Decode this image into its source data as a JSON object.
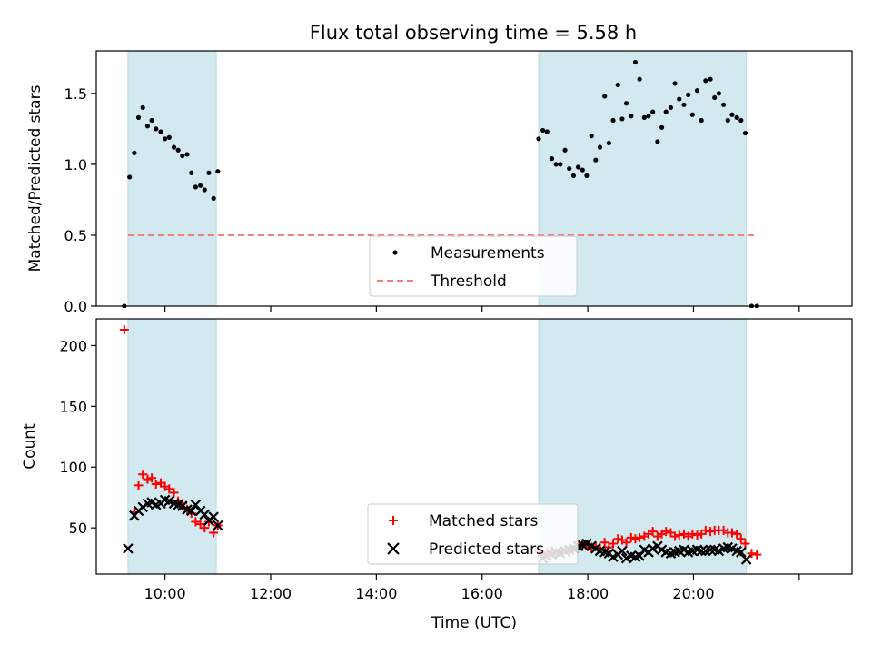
{
  "chart_data": [
    {
      "type": "scatter",
      "title": "Flux total observing time = 5.58 h",
      "xlabel": "",
      "ylabel": "Matched/Predicted stars",
      "ylim": [
        0,
        1.8
      ],
      "yticks": [
        "0.0",
        "0.5",
        "1.0",
        "1.5"
      ],
      "ytick_values": [
        0,
        0.5,
        1.0,
        1.5
      ],
      "xlim": [
        8.7,
        23.0
      ],
      "xticks": [
        10,
        12,
        14,
        16,
        18,
        20,
        22
      ],
      "grid": false,
      "legend_position": "lower-center",
      "shaded_intervals": [
        [
          9.3,
          10.97
        ],
        [
          17.07,
          21.0
        ]
      ],
      "shade_color": "#d2e9f0",
      "series": [
        {
          "name": "Measurements",
          "kind": "scatter",
          "color": "#000000",
          "x": [
            9.23,
            9.33,
            9.42,
            9.5,
            9.58,
            9.67,
            9.75,
            9.83,
            9.92,
            10.0,
            10.08,
            10.17,
            10.25,
            10.33,
            10.42,
            10.5,
            10.58,
            10.67,
            10.75,
            10.83,
            10.92,
            11.0,
            17.07,
            17.15,
            17.23,
            17.32,
            17.4,
            17.48,
            17.57,
            17.65,
            17.73,
            17.82,
            17.9,
            17.98,
            18.07,
            18.15,
            18.23,
            18.32,
            18.4,
            18.48,
            18.57,
            18.65,
            18.73,
            18.82,
            18.9,
            18.98,
            19.07,
            19.15,
            19.23,
            19.32,
            19.4,
            19.48,
            19.57,
            19.65,
            19.73,
            19.82,
            19.9,
            19.98,
            20.07,
            20.15,
            20.23,
            20.32,
            20.4,
            20.48,
            20.57,
            20.65,
            20.73,
            20.82,
            20.9,
            20.98,
            21.1,
            21.2
          ],
          "y": [
            0.0,
            0.91,
            1.08,
            1.33,
            1.4,
            1.27,
            1.31,
            1.25,
            1.23,
            1.18,
            1.19,
            1.12,
            1.1,
            1.06,
            1.07,
            0.94,
            0.84,
            0.85,
            0.82,
            0.94,
            0.76,
            0.95,
            1.18,
            1.24,
            1.23,
            1.04,
            1.0,
            1.0,
            1.1,
            0.97,
            0.92,
            0.98,
            0.96,
            0.92,
            1.2,
            1.03,
            1.12,
            1.48,
            1.15,
            1.31,
            1.56,
            1.32,
            1.43,
            1.34,
            1.72,
            1.6,
            1.33,
            1.34,
            1.37,
            1.16,
            1.26,
            1.37,
            1.4,
            1.57,
            1.46,
            1.42,
            1.49,
            1.35,
            1.52,
            1.31,
            1.59,
            1.6,
            1.47,
            1.5,
            1.42,
            1.31,
            1.35,
            1.33,
            1.31,
            1.22,
            0.0,
            0.0
          ]
        },
        {
          "name": "Threshold",
          "kind": "dashed-line",
          "color": "#f08080",
          "x": [
            9.3,
            21.2
          ],
          "y": [
            0.5,
            0.5
          ]
        }
      ]
    },
    {
      "type": "scatter",
      "title": "",
      "xlabel": "Time (UTC)",
      "ylabel": "Count",
      "ylim": [
        12,
        222
      ],
      "yticks": [
        "50",
        "100",
        "150",
        "200"
      ],
      "ytick_values": [
        50,
        100,
        150,
        200
      ],
      "xlim": [
        8.7,
        23.0
      ],
      "xticks": [
        10,
        12,
        14,
        16,
        18,
        20,
        22
      ],
      "xtick_labels": [
        "10:00",
        "12:00",
        "14:00",
        "16:00",
        "18:00",
        "20:00",
        ""
      ],
      "grid": false,
      "legend_position": "lower-center",
      "shaded_intervals": [
        [
          9.3,
          10.97
        ],
        [
          17.07,
          21.0
        ]
      ],
      "shade_color": "#d2e9f0",
      "series": [
        {
          "name": "Matched stars",
          "kind": "plus",
          "color": "#ff0000",
          "x": [
            9.23,
            9.42,
            9.5,
            9.58,
            9.67,
            9.75,
            9.83,
            9.92,
            10.0,
            10.08,
            10.17,
            10.25,
            10.33,
            10.42,
            10.5,
            10.58,
            10.67,
            10.75,
            10.83,
            10.92,
            11.0,
            17.07,
            17.15,
            17.23,
            17.32,
            17.4,
            17.48,
            17.57,
            17.65,
            17.73,
            17.82,
            17.9,
            17.98,
            18.07,
            18.15,
            18.23,
            18.32,
            18.4,
            18.48,
            18.57,
            18.65,
            18.73,
            18.82,
            18.9,
            18.98,
            19.07,
            19.15,
            19.23,
            19.32,
            19.4,
            19.48,
            19.57,
            19.65,
            19.73,
            19.82,
            19.9,
            19.98,
            20.07,
            20.15,
            20.23,
            20.32,
            20.4,
            20.48,
            20.57,
            20.65,
            20.73,
            20.82,
            20.9,
            20.98,
            21.1,
            21.2
          ],
          "y": [
            213,
            63,
            85,
            94,
            90,
            91,
            86,
            87,
            84,
            82,
            79,
            72,
            70,
            65,
            62,
            55,
            53,
            50,
            55,
            46,
            52,
            30,
            28,
            30,
            31,
            29,
            30,
            32,
            30,
            32,
            35,
            36,
            36,
            34,
            35,
            33,
            38,
            34,
            37,
            41,
            40,
            38,
            42,
            41,
            42,
            43,
            45,
            47,
            43,
            45,
            47,
            46,
            43,
            44,
            45,
            43,
            45,
            44,
            45,
            48,
            47,
            48,
            48,
            48,
            46,
            46,
            45,
            41,
            37,
            29,
            28
          ]
        },
        {
          "name": "Predicted stars",
          "kind": "x",
          "color": "#000000",
          "x": [
            9.3,
            9.42,
            9.5,
            9.58,
            9.67,
            9.75,
            9.83,
            9.92,
            10.0,
            10.08,
            10.17,
            10.25,
            10.33,
            10.42,
            10.5,
            10.58,
            10.67,
            10.75,
            10.83,
            10.92,
            11.0,
            17.15,
            17.23,
            17.32,
            17.4,
            17.48,
            17.57,
            17.65,
            17.73,
            17.82,
            17.9,
            17.98,
            18.07,
            18.15,
            18.23,
            18.32,
            18.4,
            18.48,
            18.57,
            18.65,
            18.73,
            18.82,
            18.9,
            18.98,
            19.07,
            19.15,
            19.23,
            19.32,
            19.4,
            19.48,
            19.57,
            19.65,
            19.73,
            19.82,
            19.9,
            19.98,
            20.07,
            20.15,
            20.23,
            20.32,
            20.4,
            20.48,
            20.57,
            20.65,
            20.73,
            20.82,
            20.9,
            21.0
          ],
          "y": [
            33,
            60,
            64,
            67,
            70,
            71,
            69,
            70,
            73,
            72,
            70,
            69,
            68,
            65,
            64,
            69,
            64,
            61,
            56,
            59,
            52,
            25,
            27,
            28,
            30,
            29,
            31,
            32,
            33,
            35,
            36,
            37,
            35,
            33,
            31,
            30,
            29,
            26,
            28,
            31,
            25,
            27,
            26,
            27,
            32,
            30,
            33,
            35,
            32,
            30,
            29,
            30,
            31,
            32,
            30,
            31,
            32,
            31,
            31,
            32,
            32,
            31,
            33,
            34,
            33,
            31,
            30,
            24
          ]
        }
      ]
    }
  ]
}
